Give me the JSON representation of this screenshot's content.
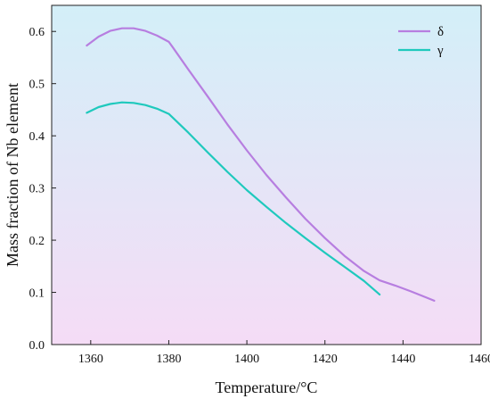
{
  "chart_data": {
    "type": "line",
    "title": "",
    "xlabel": "Temperature/°C",
    "ylabel": "Mass fraction of Nb element",
    "xlim": [
      1350,
      1460
    ],
    "ylim": [
      0.0,
      0.65
    ],
    "xticks": [
      1360,
      1380,
      1400,
      1420,
      1440,
      1460
    ],
    "yticks": [
      0.0,
      0.1,
      0.2,
      0.3,
      0.4,
      0.5,
      0.6
    ],
    "xtick_labels": [
      "1360",
      "1380",
      "1400",
      "1420",
      "1440",
      "1460"
    ],
    "ytick_labels": [
      "0.0",
      "0.1",
      "0.2",
      "0.3",
      "0.4",
      "0.5",
      "0.6"
    ],
    "grid": false,
    "legend_position": "top-right",
    "background": "gradient light cyan to light pink",
    "colors": {
      "delta": "#b77ee0",
      "gamma": "#1fc9bd",
      "bg_top": "#d3eff8",
      "bg_bottom": "#f5dcf6"
    },
    "series": [
      {
        "name": "δ",
        "color": "#b77ee0",
        "x": [
          1359,
          1362,
          1365,
          1368,
          1371,
          1374,
          1377,
          1380,
          1381,
          1385,
          1390,
          1395,
          1400,
          1405,
          1410,
          1415,
          1420,
          1425,
          1430,
          1434,
          1438,
          1442,
          1445,
          1448
        ],
        "y": [
          0.573,
          0.59,
          0.601,
          0.606,
          0.606,
          0.601,
          0.592,
          0.58,
          0.57,
          0.527,
          0.475,
          0.422,
          0.372,
          0.325,
          0.282,
          0.241,
          0.204,
          0.17,
          0.141,
          0.123,
          0.113,
          0.102,
          0.093,
          0.084
        ]
      },
      {
        "name": "γ",
        "color": "#1fc9bd",
        "x": [
          1359,
          1362,
          1365,
          1368,
          1371,
          1374,
          1377,
          1380,
          1381,
          1385,
          1390,
          1395,
          1400,
          1405,
          1410,
          1415,
          1420,
          1425,
          1430,
          1434
        ],
        "y": [
          0.444,
          0.455,
          0.461,
          0.464,
          0.463,
          0.459,
          0.452,
          0.442,
          0.435,
          0.406,
          0.368,
          0.331,
          0.296,
          0.264,
          0.233,
          0.204,
          0.176,
          0.149,
          0.122,
          0.096
        ]
      }
    ]
  }
}
